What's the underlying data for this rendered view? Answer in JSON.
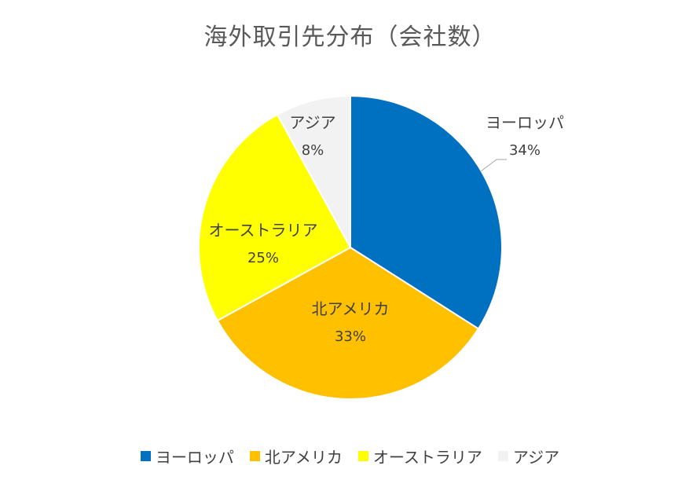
{
  "chart_data": {
    "type": "pie",
    "title": "海外取引先分布（会社数）",
    "slices": [
      {
        "label": "ヨーロッパ",
        "value": 34,
        "pct_label": "34%",
        "color": "#0070C0"
      },
      {
        "label": "北アメリカ",
        "value": 33,
        "pct_label": "33%",
        "color": "#FFC000"
      },
      {
        "label": "オーストラリア",
        "value": 25,
        "pct_label": "25%",
        "color": "#FFFF00"
      },
      {
        "label": "アジア",
        "value": 8,
        "pct_label": "8%",
        "color": "#F2F2F2"
      }
    ],
    "legend_position": "bottom",
    "start_angle": "12 o'clock",
    "direction": "clockwise"
  }
}
